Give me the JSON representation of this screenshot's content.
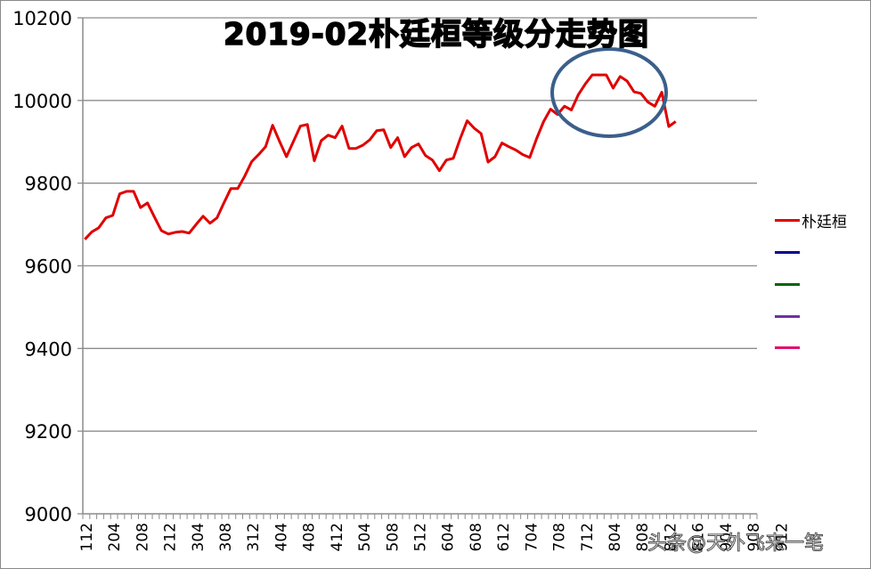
{
  "chart_data": {
    "type": "line",
    "title": "2019-02朴廷桓等级分走势图",
    "xlabel": "",
    "ylabel": "",
    "ylim": [
      9000,
      10200
    ],
    "yticks": [
      9000,
      9200,
      9400,
      9600,
      9800,
      10000,
      10200
    ],
    "grid": "horizontal",
    "legend_position": "right",
    "x_tick_labels": [
      "112",
      "204",
      "208",
      "212",
      "304",
      "308",
      "312",
      "404",
      "408",
      "412",
      "504",
      "508",
      "512",
      "604",
      "608",
      "612",
      "704",
      "708",
      "712",
      "804",
      "808",
      "812",
      "816",
      "904",
      "908",
      "912"
    ],
    "series": [
      {
        "name": "朴廷桓",
        "color": "#e00000",
        "values": [
          9664,
          9682,
          9692,
          9716,
          9722,
          9774,
          9780,
          9780,
          9741,
          9752,
          9718,
          9685,
          9677,
          9681,
          9683,
          9679,
          9700,
          9720,
          9703,
          9716,
          9752,
          9787,
          9787,
          9817,
          9852,
          9869,
          9888,
          9940,
          9901,
          9864,
          9901,
          9938,
          9942,
          9854,
          9903,
          9916,
          9910,
          9938,
          9884,
          9884,
          9892,
          9905,
          9927,
          9929,
          9886,
          9910,
          9864,
          9886,
          9895,
          9867,
          9856,
          9830,
          9856,
          9860,
          9908,
          9951,
          9933,
          9920,
          9851,
          9864,
          9897,
          9888,
          9880,
          9869,
          9862,
          9908,
          9949,
          9979,
          9966,
          9986,
          9977,
          10014,
          10040,
          10062,
          10062,
          10062,
          10030,
          10058,
          10047,
          10021,
          10017,
          9996,
          9986,
          10020,
          9937,
          9949
        ]
      },
      {
        "name": "",
        "color": "#000099",
        "values": []
      },
      {
        "name": "",
        "color": "#006600",
        "values": []
      },
      {
        "name": "",
        "color": "#7030a0",
        "values": []
      },
      {
        "name": "",
        "color": "#e0106a",
        "values": []
      }
    ],
    "annotations": [
      {
        "type": "ellipse",
        "color": "#3b5f8a",
        "description": "highlight around peak region near 10000-10060"
      }
    ]
  },
  "watermark": "头条@天外飞来一笔"
}
